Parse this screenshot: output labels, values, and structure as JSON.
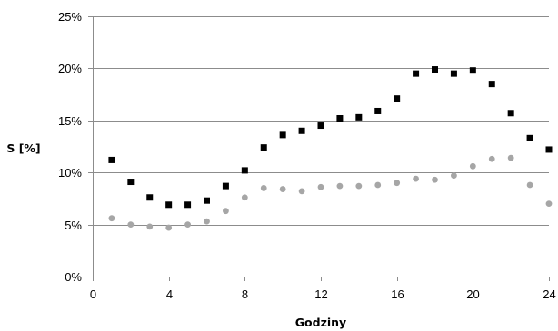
{
  "chart_data": {
    "type": "scatter",
    "xlabel": "Godziny",
    "ylabel": "S [%]",
    "xlim": [
      0,
      24
    ],
    "ylim": [
      0,
      25
    ],
    "x_ticks": [
      "0",
      "4",
      "8",
      "12",
      "16",
      "20",
      "24"
    ],
    "y_ticks": [
      "0%",
      "5%",
      "10%",
      "15%",
      "20%",
      "25%"
    ],
    "grid": "horizontal",
    "legend": "none",
    "series": [
      {
        "marker": "square",
        "color": "#000000",
        "x": [
          1,
          2,
          3,
          4,
          5,
          6,
          7,
          8,
          9,
          10,
          11,
          12,
          13,
          14,
          15,
          16,
          17,
          18,
          19,
          20,
          21,
          22,
          23,
          24
        ],
        "y": [
          11.2,
          9.1,
          7.6,
          6.9,
          6.9,
          7.3,
          8.7,
          10.2,
          12.4,
          13.6,
          14.0,
          14.5,
          15.2,
          15.3,
          15.9,
          17.1,
          19.5,
          19.9,
          19.5,
          19.8,
          18.5,
          15.7,
          13.3,
          12.2
        ]
      },
      {
        "marker": "circle",
        "color": "#a6a6a6",
        "x": [
          1,
          2,
          3,
          4,
          5,
          6,
          7,
          8,
          9,
          10,
          11,
          12,
          13,
          14,
          15,
          16,
          17,
          18,
          19,
          20,
          21,
          22,
          23,
          24
        ],
        "y": [
          5.6,
          5.0,
          4.8,
          4.7,
          5.0,
          5.3,
          6.3,
          7.6,
          8.5,
          8.4,
          8.2,
          8.6,
          8.7,
          8.7,
          8.8,
          9.0,
          9.4,
          9.3,
          9.7,
          10.6,
          11.3,
          11.4,
          8.8,
          7.0
        ]
      }
    ]
  }
}
